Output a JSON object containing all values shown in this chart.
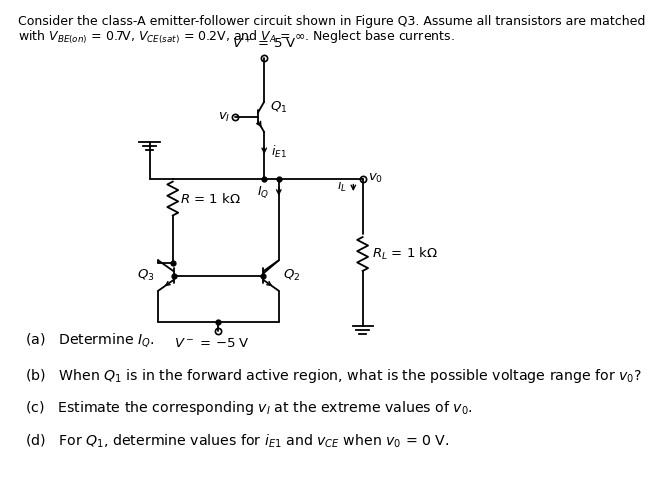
{
  "title_line1": "Consider the class-A emitter-follower circuit shown in Figure Q3. Assume all transistors are matched",
  "title_line2": "with $V_{BE(on)}$ = 0.7V, $V_{CE(sat)}$ = 0.2V, and $V_A$ = ∞. Neglect base currents.",
  "vplus_label": "$V^+$ = 5 V",
  "vminus_label": "$V^-$ = −5 V",
  "R_label": "$R$ = 1 kΩ",
  "RL_label": "$R_L$ = 1 kΩ",
  "Q1_label": "$Q_1$",
  "Q2_label": "$Q_2$",
  "Q3_label": "$Q_3$",
  "vi_label": "$v_I$",
  "vo_label": "$v_0$",
  "iE1_label": "$i_{E1}$",
  "iQ_label": "$I_Q$",
  "iL_label": "$i_L$",
  "qa_label": "(a)   Determine $I_Q$.",
  "qb_label": "(b)   When $Q_1$ is in the forward active region, what is the possible voltage range for $v_0$?",
  "qc_label": "(c)   Estimate the corresponding $v_I$ at the extreme values of $v_0$.",
  "qd_label": "(d)   For $Q_1$, determine values for $i_{E1}$ and $v_{CE}$ when $v_0$ = 0 V.",
  "bg_color": "#ffffff",
  "line_color": "#000000"
}
